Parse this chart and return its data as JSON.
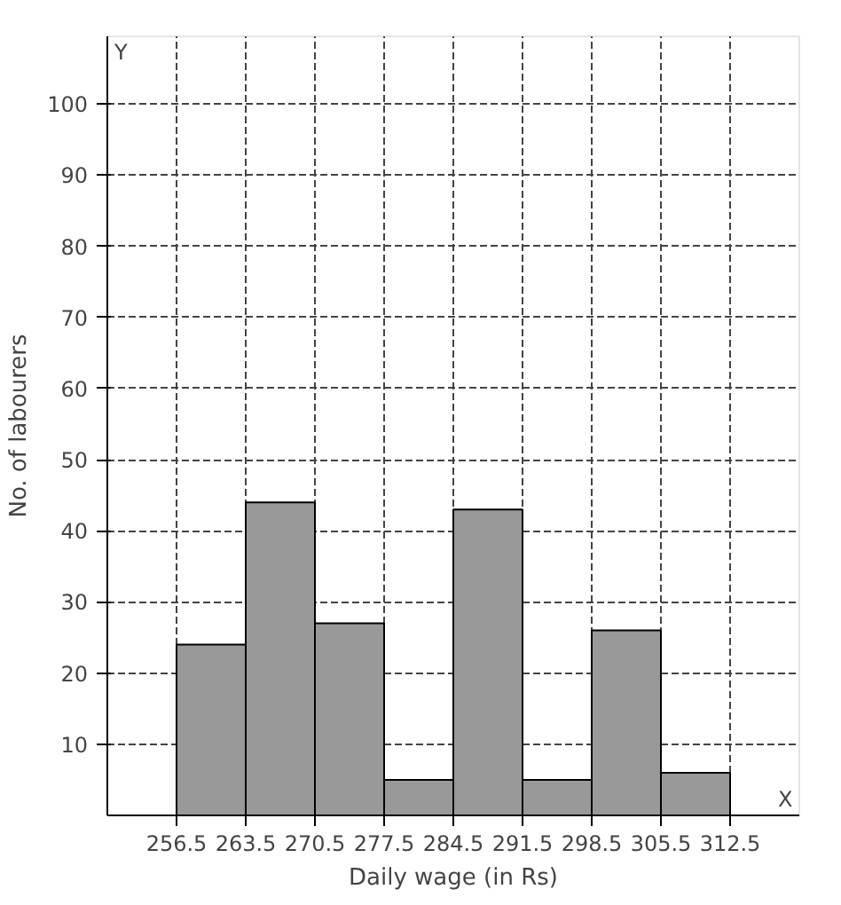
{
  "chart_data": {
    "type": "histogram",
    "xlabel": "Daily wage (in Rs)",
    "ylabel": "No. of labourers",
    "bins": [
      256.5,
      263.5,
      270.5,
      277.5,
      284.5,
      291.5,
      298.5,
      305.5,
      312.5
    ],
    "values": [
      24,
      44,
      27,
      5,
      43,
      5,
      26,
      6
    ],
    "color": "#999999",
    "xlim": [
      249.5,
      319.5
    ],
    "ylim": [
      0,
      109.5
    ],
    "xticks": [
      256.5,
      263.5,
      270.5,
      277.5,
      284.5,
      291.5,
      298.5,
      305.5,
      312.5
    ],
    "yticks": [
      10,
      20,
      30,
      40,
      50,
      60,
      70,
      80,
      90,
      100
    ],
    "annotations": [
      "X",
      "Y"
    ],
    "grid": true
  }
}
